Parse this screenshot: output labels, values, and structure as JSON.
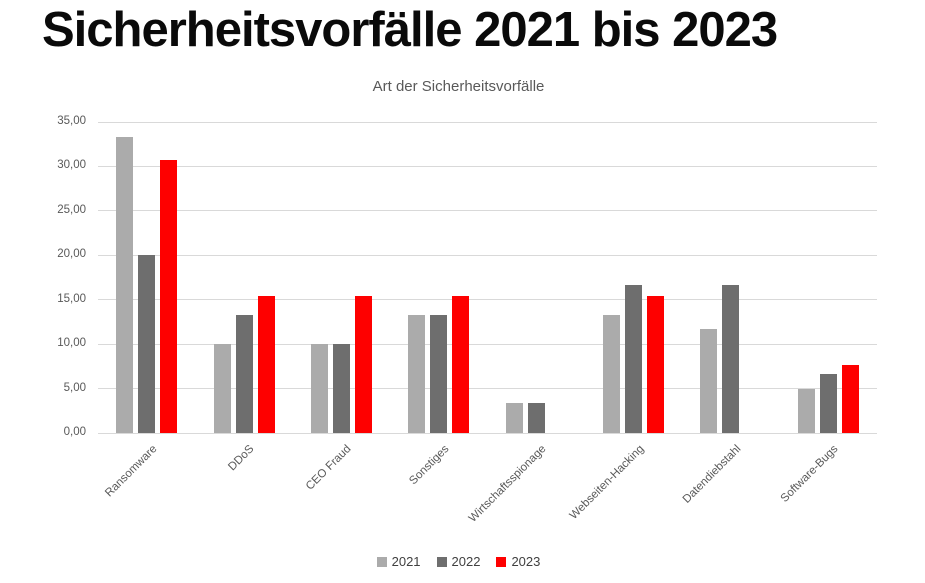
{
  "page_title": "Sicherheitsvorfälle 2021 bis 2023",
  "chart_data": {
    "type": "bar",
    "title": "Art der Sicherheitsvorfälle",
    "categories": [
      "Ransomware",
      "DDoS",
      "CEO Fraud",
      "Sonstiges",
      "Wirtschaftsspionage",
      "Webseiten-Hacking",
      "Datendiebstahl",
      "Software-Bugs"
    ],
    "series": [
      {
        "name": "2021",
        "color": "#ababab",
        "values": [
          33.33,
          10.0,
          10.0,
          13.33,
          3.33,
          13.33,
          11.67,
          5.0
        ]
      },
      {
        "name": "2022",
        "color": "#6e6e6e",
        "values": [
          20.0,
          13.33,
          10.0,
          13.33,
          3.33,
          16.67,
          16.67,
          6.67
        ]
      },
      {
        "name": "2023",
        "color": "#fe0000",
        "values": [
          30.77,
          15.38,
          15.38,
          15.38,
          0,
          15.38,
          0,
          7.69
        ]
      }
    ],
    "xlabel": "",
    "ylabel": "",
    "ylim": [
      0,
      35
    ],
    "ytick_step": 5,
    "ytick_labels": [
      "0,00",
      "5,00",
      "10,00",
      "15,00",
      "20,00",
      "25,00",
      "30,00",
      "35,00"
    ],
    "grid": true,
    "legend_position": "bottom",
    "legend_entries": [
      "2021",
      "2022",
      "2023"
    ]
  },
  "colors": {
    "background": "#ffffff",
    "title_text": "#0a0a0a",
    "subtitle_text": "#595959",
    "axis_text": "#595959",
    "gridline": "#d9d9d9",
    "legend_text": "#404040"
  }
}
